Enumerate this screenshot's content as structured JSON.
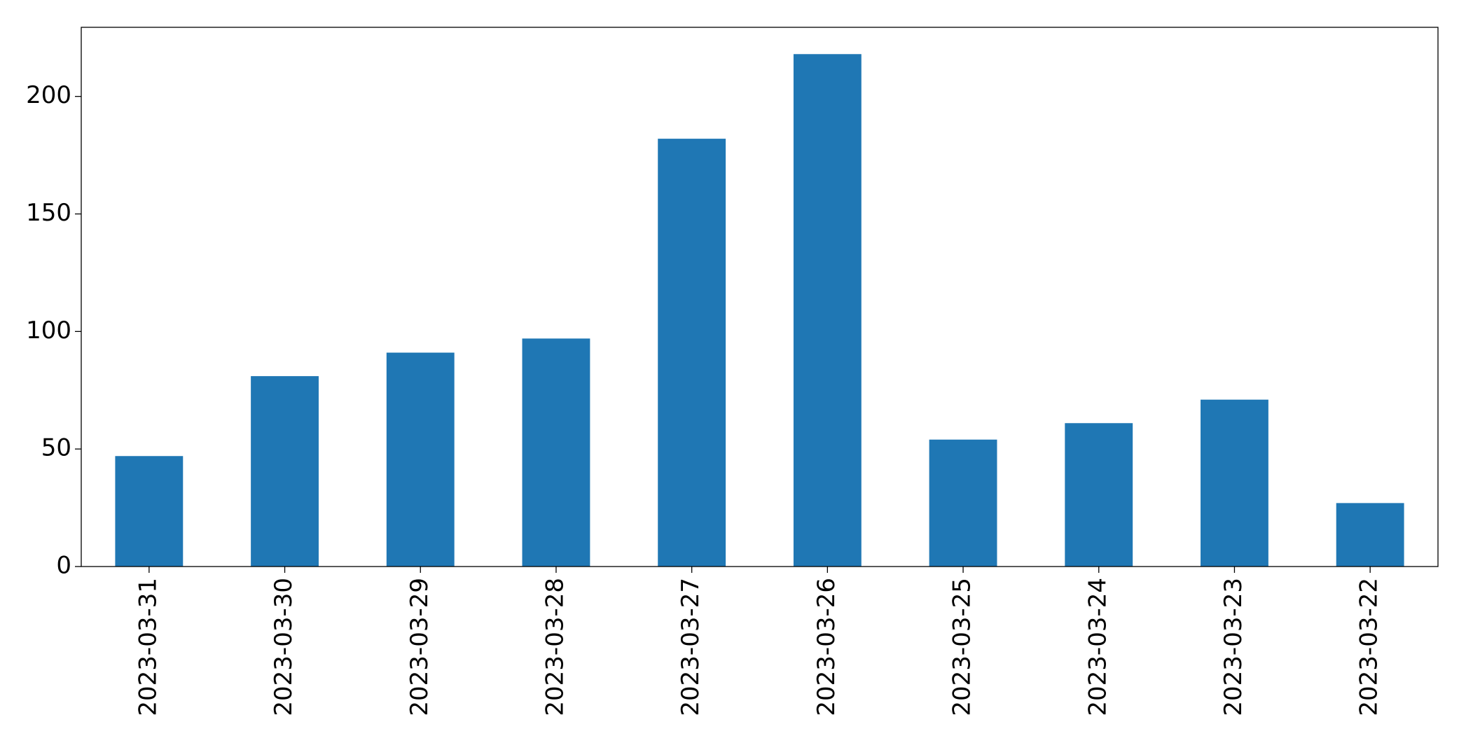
{
  "chart_data": {
    "type": "bar",
    "categories": [
      "2023-03-31",
      "2023-03-30",
      "2023-03-29",
      "2023-03-28",
      "2023-03-27",
      "2023-03-26",
      "2023-03-25",
      "2023-03-24",
      "2023-03-23",
      "2023-03-22"
    ],
    "values": [
      47,
      81,
      91,
      97,
      182,
      218,
      54,
      61,
      71,
      27
    ],
    "color": "#1f77b4",
    "ylim": [
      0,
      229.4
    ],
    "yticks": [
      0,
      50,
      100,
      150,
      200
    ],
    "grid": false
  }
}
